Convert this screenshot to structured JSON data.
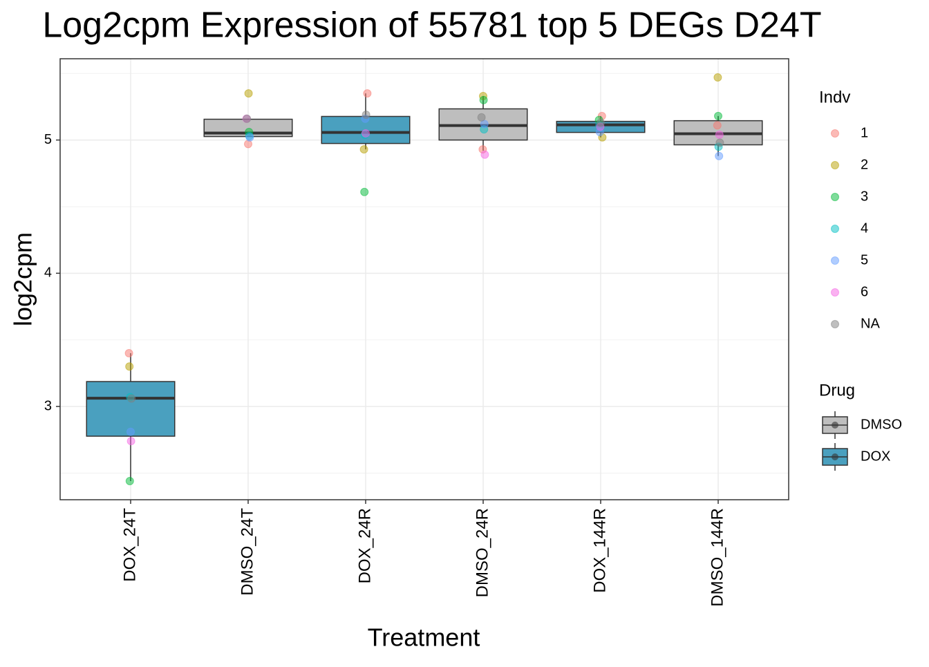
{
  "chart_data": {
    "type": "box",
    "title": "Log2cpm Expression of 55781 top 5 DEGs D24T",
    "x_label": "Treatment",
    "y_label": "log2cpm",
    "categories": [
      "DOX_24T",
      "DMSO_24T",
      "DOX_24R",
      "DMSO_24R",
      "DOX_144R",
      "DMSO_144R"
    ],
    "ylim": [
      2.3,
      5.61
    ],
    "yticks": [
      3,
      4,
      5
    ],
    "minor_yticks": [
      2.5,
      3.5,
      4.5,
      5.5
    ],
    "grid": true,
    "boxes": [
      {
        "drug": "DOX",
        "low": 2.44,
        "q1": 2.777,
        "median": 3.062,
        "q3": 3.187,
        "high": 3.4
      },
      {
        "drug": "DMSO",
        "low": 5.026,
        "q1": 5.026,
        "median": 5.052,
        "q3": 5.156,
        "high": 5.16
      },
      {
        "drug": "DOX",
        "low": 4.93,
        "q1": 4.974,
        "median": 5.057,
        "q3": 5.177,
        "high": 5.35
      },
      {
        "drug": "DMSO",
        "low": 4.92,
        "q1": 5.0,
        "median": 5.109,
        "q3": 5.234,
        "high": 5.33
      },
      {
        "drug": "DOX",
        "low": 5.02,
        "q1": 5.057,
        "median": 5.114,
        "q3": 5.14,
        "high": 5.18
      },
      {
        "drug": "DMSO",
        "low": 4.88,
        "q1": 4.964,
        "median": 5.047,
        "q3": 5.145,
        "high": 5.18
      }
    ],
    "legend_title": "Indv",
    "series": [
      {
        "name": "1",
        "color": "#F8766D",
        "values": [
          3.4,
          4.97,
          5.35,
          4.93,
          5.18,
          5.11
        ]
      },
      {
        "name": "2",
        "color": "#B79F00",
        "values": [
          3.3,
          5.35,
          4.93,
          5.33,
          5.02,
          5.47
        ]
      },
      {
        "name": "3",
        "color": "#00BA38",
        "values": [
          2.44,
          5.06,
          4.61,
          5.3,
          5.15,
          5.18
        ]
      },
      {
        "name": "4",
        "color": "#00BFC4",
        "values": [
          3.07,
          5.03,
          5.04,
          5.08,
          5.11,
          4.95
        ]
      },
      {
        "name": "5",
        "color": "#619CFF",
        "values": [
          2.81,
          5.02,
          5.16,
          5.12,
          5.06,
          4.88
        ]
      },
      {
        "name": "6",
        "color": "#F564E3",
        "values": [
          2.74,
          5.16,
          5.05,
          4.89,
          5.1,
          5.04
        ]
      },
      {
        "name": "NA",
        "color": "#7f7f7f",
        "values": [
          3.06,
          5.16,
          5.19,
          5.17,
          5.13,
          4.98
        ]
      }
    ],
    "fill_legend": {
      "title": "Drug",
      "items": [
        {
          "name": "DMSO",
          "color": "#bebebe"
        },
        {
          "name": "DOX",
          "color": "#4aa0bf"
        }
      ]
    }
  }
}
